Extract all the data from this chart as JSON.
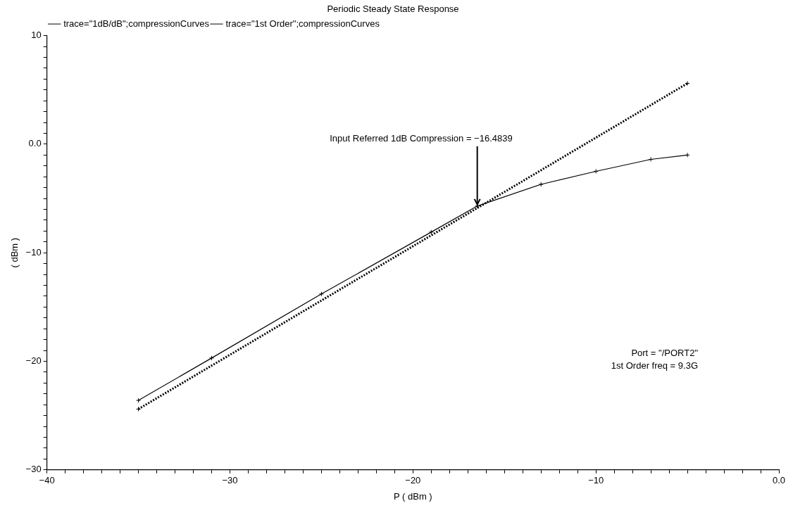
{
  "chart_data": {
    "type": "line",
    "title": "Periodic Steady State Response",
    "xlabel": "P ( dBm )",
    "ylabel": "( dBm )",
    "series": [
      {
        "name": "trace=\"1dB/dB\";compressionCurves",
        "color": "#000000",
        "line_style": "solid",
        "x": [
          -35,
          -31,
          -25,
          -19,
          -16.4839,
          -13,
          -10,
          -7,
          -5
        ],
        "values": [
          -23.6,
          -19.7,
          -13.8,
          -8.1,
          -5.7,
          -3.7,
          -2.5,
          -1.4,
          -1.0
        ]
      },
      {
        "name": "trace=\"1st Order\";compressionCurves",
        "color": "#000000",
        "line_style": "dotted",
        "x": [
          -35,
          -5
        ],
        "values": [
          -24.4,
          5.6
        ]
      }
    ],
    "xlim": [
      -40,
      0
    ],
    "ylim": [
      -30,
      10
    ],
    "xticks": [
      {
        "value": -40,
        "label": "−40"
      },
      {
        "value": -39,
        "label": null
      },
      {
        "value": -38,
        "label": null
      },
      {
        "value": -37,
        "label": null
      },
      {
        "value": -36,
        "label": null
      },
      {
        "value": -35,
        "label": null
      },
      {
        "value": -34,
        "label": null
      },
      {
        "value": -33,
        "label": null
      },
      {
        "value": -32,
        "label": null
      },
      {
        "value": -31,
        "label": null
      },
      {
        "value": -30,
        "label": "−30"
      },
      {
        "value": -29,
        "label": null
      },
      {
        "value": -28,
        "label": null
      },
      {
        "value": -27,
        "label": null
      },
      {
        "value": -26,
        "label": null
      },
      {
        "value": -25,
        "label": null
      },
      {
        "value": -24,
        "label": null
      },
      {
        "value": -23,
        "label": null
      },
      {
        "value": -22,
        "label": null
      },
      {
        "value": -21,
        "label": null
      },
      {
        "value": -20,
        "label": "−20"
      },
      {
        "value": -19,
        "label": null
      },
      {
        "value": -18,
        "label": null
      },
      {
        "value": -17,
        "label": null
      },
      {
        "value": -16,
        "label": null
      },
      {
        "value": -15,
        "label": null
      },
      {
        "value": -14,
        "label": null
      },
      {
        "value": -13,
        "label": null
      },
      {
        "value": -12,
        "label": null
      },
      {
        "value": -11,
        "label": null
      },
      {
        "value": -10,
        "label": "−10"
      },
      {
        "value": -9,
        "label": null
      },
      {
        "value": -8,
        "label": null
      },
      {
        "value": -7,
        "label": null
      },
      {
        "value": -6,
        "label": null
      },
      {
        "value": -5,
        "label": null
      },
      {
        "value": -4,
        "label": null
      },
      {
        "value": -3,
        "label": null
      },
      {
        "value": -2,
        "label": null
      },
      {
        "value": -1,
        "label": null
      },
      {
        "value": 0,
        "label": "0.0"
      }
    ],
    "yticks": [
      {
        "value": -30,
        "label": "−30"
      },
      {
        "value": -29,
        "label": null
      },
      {
        "value": -28,
        "label": null
      },
      {
        "value": -27,
        "label": null
      },
      {
        "value": -26,
        "label": null
      },
      {
        "value": -25,
        "label": null
      },
      {
        "value": -24,
        "label": null
      },
      {
        "value": -23,
        "label": null
      },
      {
        "value": -22,
        "label": null
      },
      {
        "value": -21,
        "label": null
      },
      {
        "value": -20,
        "label": "−20"
      },
      {
        "value": -19,
        "label": null
      },
      {
        "value": -18,
        "label": null
      },
      {
        "value": -17,
        "label": null
      },
      {
        "value": -16,
        "label": null
      },
      {
        "value": -15,
        "label": null
      },
      {
        "value": -14,
        "label": null
      },
      {
        "value": -13,
        "label": null
      },
      {
        "value": -12,
        "label": null
      },
      {
        "value": -11,
        "label": null
      },
      {
        "value": -10,
        "label": "−10"
      },
      {
        "value": -9,
        "label": null
      },
      {
        "value": -8,
        "label": null
      },
      {
        "value": -7,
        "label": null
      },
      {
        "value": -6,
        "label": null
      },
      {
        "value": -5,
        "label": null
      },
      {
        "value": -4,
        "label": null
      },
      {
        "value": -3,
        "label": null
      },
      {
        "value": -2,
        "label": null
      },
      {
        "value": -1,
        "label": null
      },
      {
        "value": 0,
        "label": "0.0"
      },
      {
        "value": 1,
        "label": null
      },
      {
        "value": 2,
        "label": null
      },
      {
        "value": 3,
        "label": null
      },
      {
        "value": 4,
        "label": null
      },
      {
        "value": 5,
        "label": null
      },
      {
        "value": 6,
        "label": null
      },
      {
        "value": 7,
        "label": null
      },
      {
        "value": 8,
        "label": null
      },
      {
        "value": 9,
        "label": null
      },
      {
        "value": 10,
        "label": "10"
      }
    ],
    "grid": false,
    "legend": "top left",
    "marker": "cross",
    "annotations": [
      {
        "text": "Input Referred 1dB Compression = −16.4839",
        "x": -16.4839,
        "y": -5.7
      },
      "Port = \"/PORT2\"",
      "1st Order freq = 9.3G"
    ]
  }
}
